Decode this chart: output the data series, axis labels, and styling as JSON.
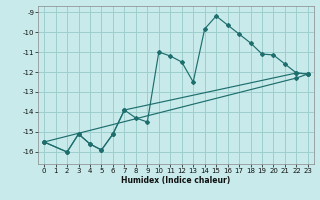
{
  "xlabel": "Humidex (Indice chaleur)",
  "xlim": [
    -0.5,
    23.5
  ],
  "ylim": [
    -16.6,
    -8.7
  ],
  "yticks": [
    -16,
    -15,
    -14,
    -13,
    -12,
    -11,
    -10,
    -9
  ],
  "xticks": [
    0,
    1,
    2,
    3,
    4,
    5,
    6,
    7,
    8,
    9,
    10,
    11,
    12,
    13,
    14,
    15,
    16,
    17,
    18,
    19,
    20,
    21,
    22,
    23
  ],
  "background_color": "#c8eaea",
  "grid_color": "#9ecece",
  "line_color": "#1e6e6e",
  "line1_x": [
    0,
    2,
    3,
    4,
    5,
    6,
    7,
    8,
    9,
    10,
    11,
    12,
    13,
    14,
    15,
    16,
    17,
    18,
    19,
    20,
    21,
    22,
    23
  ],
  "line1_y": [
    -15.5,
    -16.0,
    -15.1,
    -15.6,
    -15.9,
    -15.1,
    -13.9,
    -14.3,
    -14.5,
    -11.0,
    -11.2,
    -11.5,
    -12.5,
    -9.85,
    -9.2,
    -9.65,
    -10.1,
    -10.55,
    -11.1,
    -11.15,
    -11.6,
    -12.05,
    -12.1
  ],
  "line2_x": [
    0,
    2,
    3,
    4,
    5,
    6,
    7,
    22,
    23
  ],
  "line2_y": [
    -15.5,
    -16.0,
    -15.1,
    -15.6,
    -15.9,
    -15.1,
    -13.9,
    -12.05,
    -12.1
  ],
  "line3_x": [
    0,
    22,
    23
  ],
  "line3_y": [
    -15.5,
    -12.3,
    -12.1
  ]
}
